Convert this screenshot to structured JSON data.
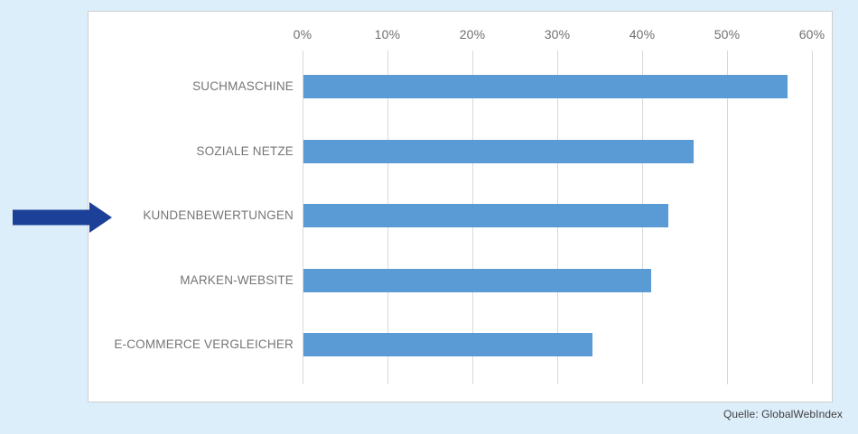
{
  "window": {
    "background_color": "#ddeefb",
    "panel_background": "#ffffff",
    "panel_border_color": "#cfcfcf"
  },
  "chart_data": {
    "type": "bar",
    "orientation": "horizontal",
    "title": "",
    "categories": [
      "SUCHMASCHINE",
      "SOZIALE NETZE",
      "KUNDENBEWERTUNGEN",
      "MARKEN-WEBSITE",
      "E-COMMERCE VERGLEICHER"
    ],
    "values": [
      57,
      46,
      43,
      41,
      34
    ],
    "unit": "%",
    "xlim": [
      0,
      60
    ],
    "x_tick_values": [
      0,
      10,
      20,
      30,
      40,
      50,
      60
    ],
    "x_tick_labels": [
      "0%",
      "10%",
      "20%",
      "30%",
      "40%",
      "50%",
      "60%"
    ],
    "axis_position": "top",
    "grid": true,
    "legend": false,
    "bar_color": "#5b9bd5",
    "gridline_color": "#d9d9d9",
    "label_color": "#757575",
    "highlighted_category": "KUNDENBEWERTUNGEN"
  },
  "annotations": {
    "arrow": {
      "points_to": "KUNDENBEWERTUNGEN",
      "direction": "right",
      "color": "#1c4098"
    }
  },
  "footer": {
    "source": "Quelle: GlobalWebIndex"
  }
}
